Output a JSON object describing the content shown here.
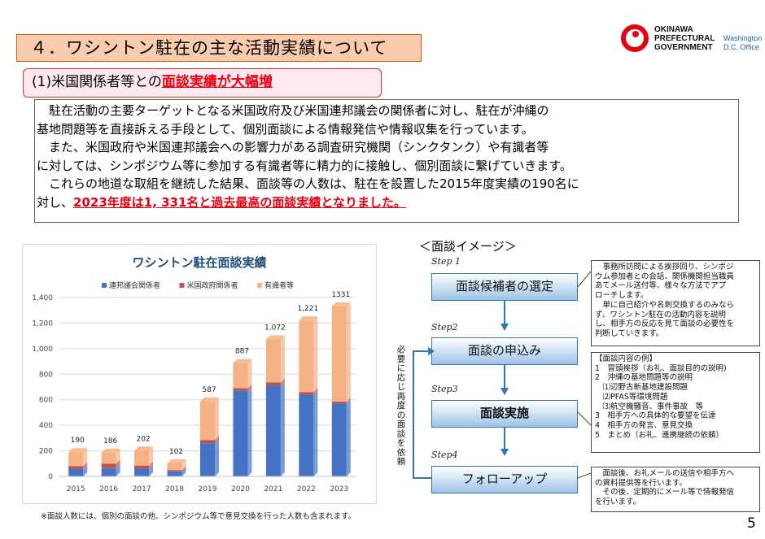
{
  "header": {
    "title": "４．ワシントン駐在の主な活動実績について",
    "logo": {
      "line1": "OKINAWA",
      "line2": "PREFECTURAL",
      "line3": "GOVERNMENT",
      "dc_line1": "Washington",
      "dc_line2": "D.C. Office",
      "accent": "#e60012"
    }
  },
  "subtitle": {
    "prefix": "(1)米国関係者等との",
    "highlight": "面談実績が大幅増"
  },
  "paragraph": {
    "lines": [
      "　駐在活動の主要ターゲットとなる米国政府及び米国連邦議会の関係者に対し、駐在が沖縄の",
      "基地問題等を直接訴える手段として、個別面談による情報発信や情報収集を行っています。",
      "　また、米国政府や米国連邦議会への影響力がある調査研究機関（シンクタンク）や有識者等",
      "に対しては、シンポジウム等に参加する有識者等に精力的に接触し、個別面談に繋げていきます。",
      "　これらの地道な取組を継続した結果、面談等の人数は、駐在を設置した2015年度実績の190名に"
    ],
    "last_prefix": "対し、",
    "last_highlight": "2023年度は1, 331名と過去最高の面談実績となりました。"
  },
  "chart_data": {
    "type": "bar",
    "stacked": true,
    "title": "ワシントン駐在面談実績",
    "categories": [
      "2015",
      "2016",
      "2017",
      "2018",
      "2019",
      "2020",
      "2021",
      "2022",
      "2023"
    ],
    "series": [
      {
        "name": "連邦議会関係者",
        "color": "#4472c4",
        "values": [
          60,
          65,
          60,
          40,
          260,
          670,
          710,
          640,
          570
        ]
      },
      {
        "name": "米国政府関係者",
        "color": "#c0504d",
        "values": [
          20,
          35,
          25,
          10,
          25,
          20,
          25,
          20,
          15
        ]
      },
      {
        "name": "有識者等",
        "color": "#f4b183",
        "values": [
          110,
          86,
          117,
          52,
          302,
          197,
          337,
          561,
          746
        ]
      }
    ],
    "totals": [
      190,
      186,
      202,
      102,
      587,
      887,
      1072,
      1221,
      1331
    ],
    "total_labels": [
      "190",
      "186",
      "202",
      "102",
      "587",
      "887",
      "1,072",
      "1,221",
      "1331"
    ],
    "y_ticks": [
      0,
      200,
      400,
      600,
      800,
      1000,
      1200,
      1400
    ],
    "y_tick_labels": [
      "0",
      "200",
      "400",
      "600",
      "800",
      "1,000",
      "1,200",
      "1,400"
    ],
    "ylim": [
      0,
      1400
    ],
    "grid": true,
    "legend": "top"
  },
  "footnote": "※面談人数には、個別の面談の他、シンポジウム等で意見交換を行った人数も含まれます。",
  "flow": {
    "heading": "＜面談イメージ＞",
    "steps": [
      {
        "label": "Step 1",
        "title": "面談候補者の選定"
      },
      {
        "label": "Step2",
        "title": "面談の申込み"
      },
      {
        "label": "Step3",
        "title": "面談実施"
      },
      {
        "label": "Step4",
        "title": "フォローアップ"
      }
    ],
    "side_note": "必要に応じ再度の面談を依頼",
    "note1": [
      "　事務所訪問による挨拶回り、シンポジ",
      "ウム参加者との会話、関係機関担当職員",
      "あてメール送付等、様々な方法でアプ",
      "ローチします。",
      "　単に自己紹介や名刺交換するのみなら",
      "ず、ワシントン駐在の活動内容を説明",
      "し、相手方の反応を見て面談の必要性を",
      "判断していきます。"
    ],
    "note2": [
      "【面談内容の例】",
      "1　冒頭挨拶（お礼、面談目的の説明)",
      "2　沖縄の基地問題等の説明",
      "　⑴辺野古新基地建設問題",
      "　⑵PFAS等環境問題",
      "　⑶航空機騒音、事件事故　等",
      "3　相手方への具体的な要望を伝達",
      "4　相手方の発言、意見交換",
      "5　まとめ（お礼、連携継続の依頼）"
    ],
    "note3": [
      "　面談後、お礼メールの送信や相手方へ",
      "の資料提供等を行います。",
      "　その後、定期的にメール等で情報発信",
      "を行います。"
    ]
  },
  "page_number": "5"
}
